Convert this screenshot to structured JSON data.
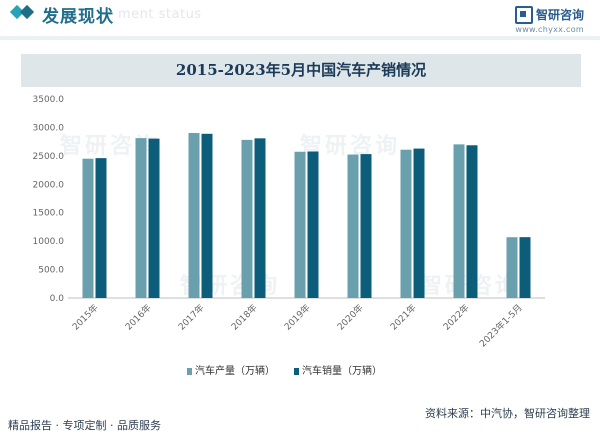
{
  "header": {
    "section_title": "发展现状",
    "section_title_ghost": "ment status",
    "logo_name": "智研咨询",
    "logo_url": "www.chyxx.com"
  },
  "chart_data": {
    "type": "bar",
    "title": "2015-2023年5月中国汽车产销情况",
    "categories": [
      "2015年",
      "2016年",
      "2017年",
      "2018年",
      "2019年",
      "2020年",
      "2021年",
      "2022年",
      "2023年1-5月"
    ],
    "series": [
      {
        "name": "汽车产量（万辆）",
        "values": [
          2450,
          2812,
          2902,
          2781,
          2572,
          2523,
          2608,
          2702,
          1069
        ]
      },
      {
        "name": "汽车销量（万辆）",
        "values": [
          2460,
          2803,
          2888,
          2808,
          2577,
          2531,
          2628,
          2686,
          1070
        ]
      }
    ],
    "ylim": [
      0,
      3500
    ],
    "yticks": [
      "3500.0",
      "3000.0",
      "2500.0",
      "2000.0",
      "1500.0",
      "1000.0",
      "500.0",
      "0.0"
    ],
    "xlabel": "",
    "ylabel": "",
    "grid": false,
    "legend_position": "bottom",
    "colors": {
      "production": "#6a9fae",
      "sales": "#0c5d7a"
    }
  },
  "footer": {
    "left_text": "精品报告 · 专项定制 · 品质服务",
    "right_text": "资料来源：中汽协，智研咨询整理"
  },
  "watermark": {
    "text": "智研咨询"
  }
}
